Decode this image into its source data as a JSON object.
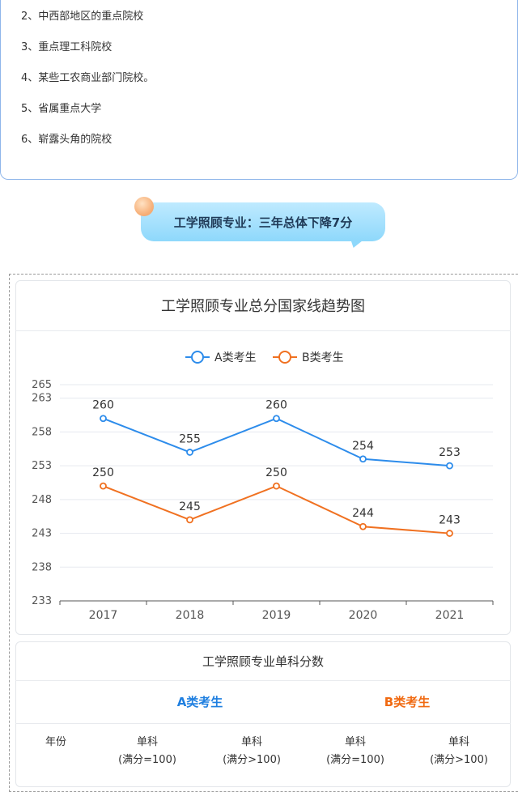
{
  "list": {
    "items": [
      "2、中西部地区的重点院校",
      "3、重点理工科院校",
      "4、某些工农商业部门院校。",
      "5、省属重点大学",
      "6、崭露头角的院校"
    ]
  },
  "section": {
    "heading": "工学照顾专业：三年总体下降7分"
  },
  "chart_data": {
    "type": "line",
    "title": "工学照顾专业总分国家线趋势图",
    "categories": [
      "2017",
      "2018",
      "2019",
      "2020",
      "2021"
    ],
    "y_ticks": [
      233,
      238,
      243,
      248,
      253,
      258,
      263,
      265
    ],
    "ylim": [
      233,
      265
    ],
    "series": [
      {
        "name": "A类考生",
        "values": [
          260,
          255,
          260,
          254,
          253
        ],
        "color": "#2d8ceb"
      },
      {
        "name": "B类考生",
        "values": [
          250,
          245,
          250,
          244,
          243
        ],
        "color": "#f07121"
      }
    ],
    "legend_position": "top-center",
    "grid": true
  },
  "table": {
    "title": "工学照顾专业单科分数",
    "group_a": "A类考生",
    "group_b": "B类考生",
    "columns": [
      {
        "line1": "年份",
        "line2": ""
      },
      {
        "line1": "单科",
        "line2": "(满分=100)"
      },
      {
        "line1": "单科",
        "line2": "(满分>100)"
      },
      {
        "line1": "单科",
        "line2": "(满分=100)"
      },
      {
        "line1": "单科",
        "line2": "(满分>100)"
      }
    ]
  }
}
